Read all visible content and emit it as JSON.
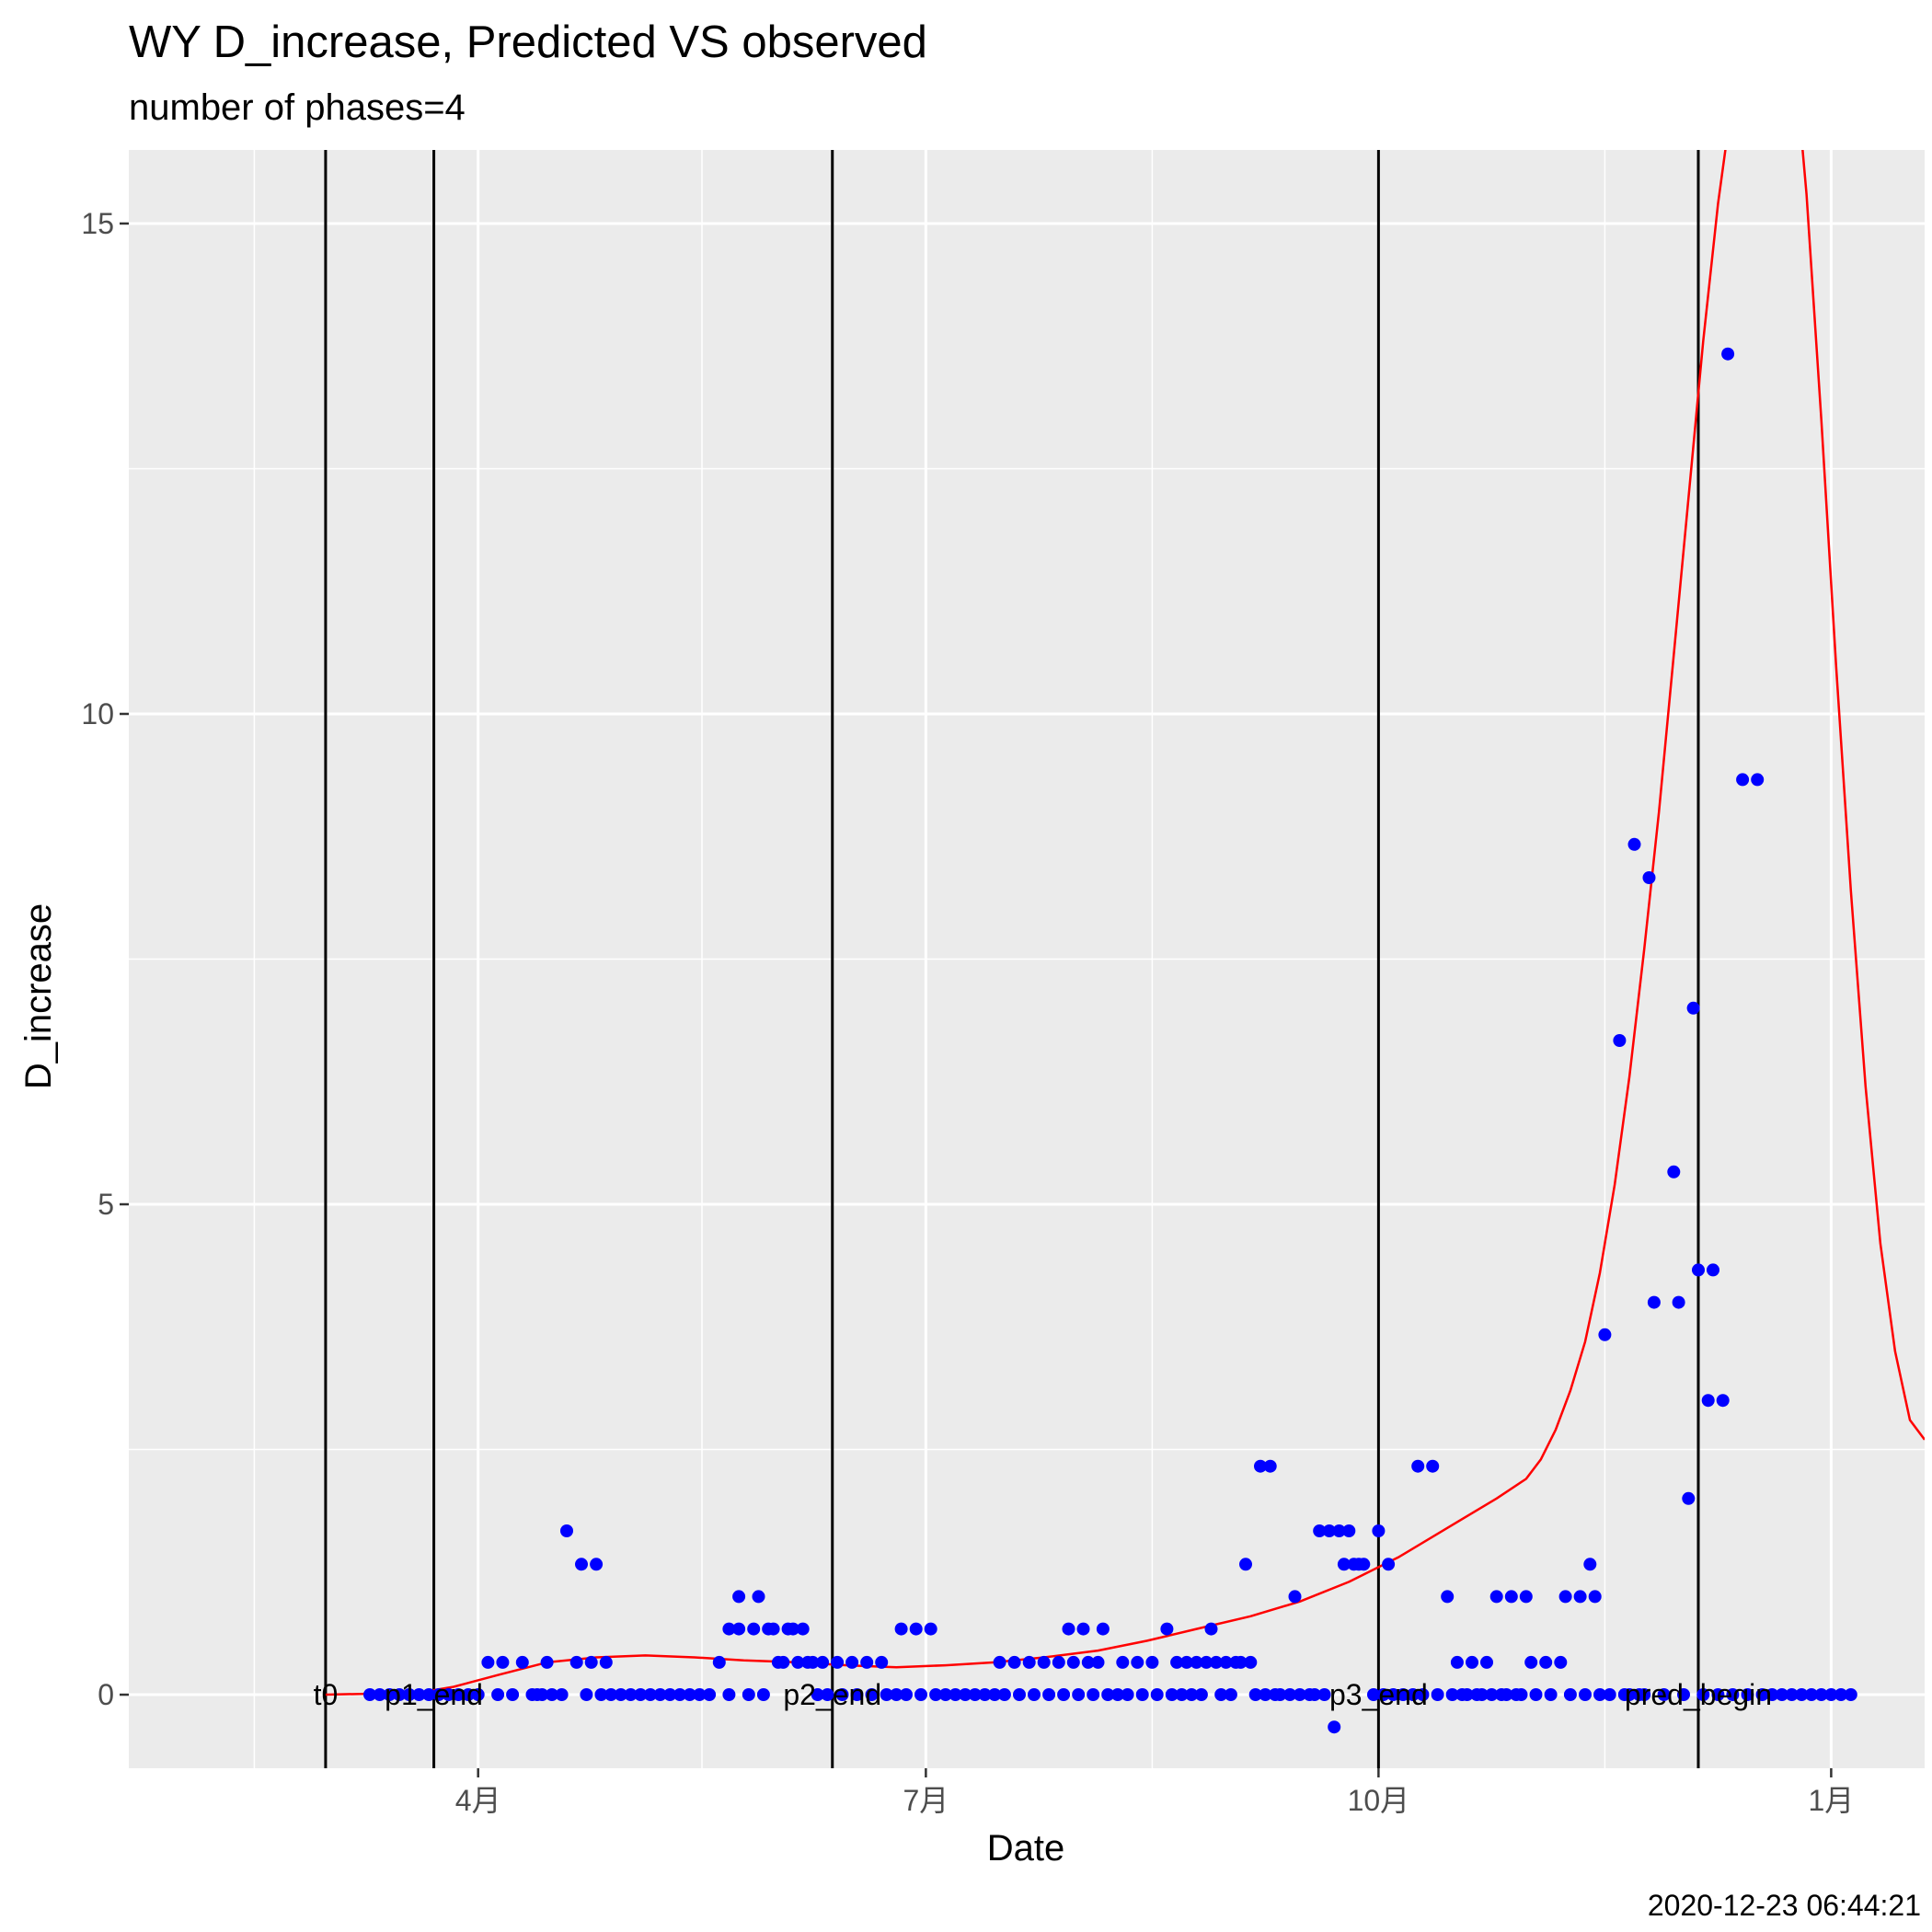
{
  "chart_data": {
    "type": "scatter",
    "title": "WY D_increase, Predicted VS observed",
    "subtitle": "number of phases=4",
    "xlabel": "Date",
    "ylabel": "D_increase",
    "caption": "2020-12-23 06:44:21",
    "xlim": [
      "2020-01-21",
      "2021-01-20"
    ],
    "ylim": [
      -0.75,
      15.75
    ],
    "grid": true,
    "y_ticks": [
      0,
      5,
      10,
      15
    ],
    "x_ticks": [
      {
        "date": "2020-04-01",
        "label": "4月"
      },
      {
        "date": "2020-07-01",
        "label": "7月"
      },
      {
        "date": "2020-10-01",
        "label": "10月"
      },
      {
        "date": "2021-01-01",
        "label": "1月"
      }
    ],
    "vlines": [
      {
        "date": "2020-03-01",
        "label": "t0"
      },
      {
        "date": "2020-03-23",
        "label": "p1_end"
      },
      {
        "date": "2020-06-12",
        "label": "p2_end"
      },
      {
        "date": "2020-10-01",
        "label": "p3_end"
      },
      {
        "date": "2020-12-05",
        "label": "pred_begin"
      }
    ],
    "series": [
      {
        "type": "points",
        "color": "#0000ff",
        "points": [
          [
            "2020-03-10",
            0
          ],
          [
            "2020-03-12",
            0
          ],
          [
            "2020-03-14",
            0
          ],
          [
            "2020-03-16",
            0
          ],
          [
            "2020-03-18",
            0
          ],
          [
            "2020-03-20",
            0
          ],
          [
            "2020-03-22",
            0
          ],
          [
            "2020-03-24",
            0
          ],
          [
            "2020-03-26",
            0
          ],
          [
            "2020-03-28",
            0
          ],
          [
            "2020-03-30",
            0
          ],
          [
            "2020-04-01",
            0
          ],
          [
            "2020-04-03",
            0.33
          ],
          [
            "2020-04-05",
            0
          ],
          [
            "2020-04-06",
            0.33
          ],
          [
            "2020-04-08",
            0
          ],
          [
            "2020-04-10",
            0.33
          ],
          [
            "2020-04-12",
            0
          ],
          [
            "2020-04-13",
            0
          ],
          [
            "2020-04-14",
            0
          ],
          [
            "2020-04-15",
            0.33
          ],
          [
            "2020-04-16",
            0
          ],
          [
            "2020-04-18",
            0
          ],
          [
            "2020-04-19",
            1.67
          ],
          [
            "2020-04-21",
            0.33
          ],
          [
            "2020-04-22",
            1.33
          ],
          [
            "2020-04-23",
            0
          ],
          [
            "2020-04-24",
            0.33
          ],
          [
            "2020-04-25",
            1.33
          ],
          [
            "2020-04-26",
            0
          ],
          [
            "2020-04-27",
            0.33
          ],
          [
            "2020-04-28",
            0
          ],
          [
            "2020-04-30",
            0
          ],
          [
            "2020-05-02",
            0
          ],
          [
            "2020-05-04",
            0
          ],
          [
            "2020-05-06",
            0
          ],
          [
            "2020-05-08",
            0
          ],
          [
            "2020-05-10",
            0
          ],
          [
            "2020-05-12",
            0
          ],
          [
            "2020-05-14",
            0
          ],
          [
            "2020-05-16",
            0
          ],
          [
            "2020-05-18",
            0
          ],
          [
            "2020-05-20",
            0.33
          ],
          [
            "2020-05-22",
            0
          ],
          [
            "2020-05-22",
            0.67
          ],
          [
            "2020-05-24",
            0.67
          ],
          [
            "2020-05-24",
            1.0
          ],
          [
            "2020-05-26",
            0
          ],
          [
            "2020-05-27",
            0.67
          ],
          [
            "2020-05-28",
            1.0
          ],
          [
            "2020-05-29",
            0
          ],
          [
            "2020-05-30",
            0.67
          ],
          [
            "2020-05-31",
            0.67
          ],
          [
            "2020-06-01",
            0.33
          ],
          [
            "2020-06-02",
            0.33
          ],
          [
            "2020-06-03",
            0.67
          ],
          [
            "2020-06-04",
            0.67
          ],
          [
            "2020-06-05",
            0.33
          ],
          [
            "2020-06-06",
            0.67
          ],
          [
            "2020-06-07",
            0.33
          ],
          [
            "2020-06-08",
            0.33
          ],
          [
            "2020-06-09",
            0
          ],
          [
            "2020-06-10",
            0.33
          ],
          [
            "2020-06-11",
            0
          ],
          [
            "2020-06-13",
            0.33
          ],
          [
            "2020-06-14",
            0
          ],
          [
            "2020-06-16",
            0.33
          ],
          [
            "2020-06-17",
            0
          ],
          [
            "2020-06-19",
            0.33
          ],
          [
            "2020-06-20",
            0
          ],
          [
            "2020-06-22",
            0.33
          ],
          [
            "2020-06-23",
            0
          ],
          [
            "2020-06-25",
            0
          ],
          [
            "2020-06-26",
            0.67
          ],
          [
            "2020-06-27",
            0
          ],
          [
            "2020-06-29",
            0.67
          ],
          [
            "2020-06-30",
            0
          ],
          [
            "2020-07-02",
            0.67
          ],
          [
            "2020-07-03",
            0
          ],
          [
            "2020-07-05",
            0
          ],
          [
            "2020-07-07",
            0
          ],
          [
            "2020-07-09",
            0
          ],
          [
            "2020-07-11",
            0
          ],
          [
            "2020-07-13",
            0
          ],
          [
            "2020-07-15",
            0
          ],
          [
            "2020-07-16",
            0.33
          ],
          [
            "2020-07-17",
            0
          ],
          [
            "2020-07-19",
            0.33
          ],
          [
            "2020-07-20",
            0
          ],
          [
            "2020-07-22",
            0.33
          ],
          [
            "2020-07-23",
            0
          ],
          [
            "2020-07-25",
            0.33
          ],
          [
            "2020-07-26",
            0
          ],
          [
            "2020-07-28",
            0.33
          ],
          [
            "2020-07-29",
            0
          ],
          [
            "2020-07-30",
            0.67
          ],
          [
            "2020-07-31",
            0.33
          ],
          [
            "2020-08-01",
            0
          ],
          [
            "2020-08-02",
            0.67
          ],
          [
            "2020-08-03",
            0.33
          ],
          [
            "2020-08-04",
            0
          ],
          [
            "2020-08-05",
            0.33
          ],
          [
            "2020-08-06",
            0.67
          ],
          [
            "2020-08-07",
            0
          ],
          [
            "2020-08-09",
            0
          ],
          [
            "2020-08-10",
            0.33
          ],
          [
            "2020-08-11",
            0
          ],
          [
            "2020-08-13",
            0.33
          ],
          [
            "2020-08-14",
            0
          ],
          [
            "2020-08-16",
            0.33
          ],
          [
            "2020-08-17",
            0
          ],
          [
            "2020-08-19",
            0.67
          ],
          [
            "2020-08-20",
            0
          ],
          [
            "2020-08-21",
            0.33
          ],
          [
            "2020-08-22",
            0
          ],
          [
            "2020-08-23",
            0.33
          ],
          [
            "2020-08-24",
            0
          ],
          [
            "2020-08-25",
            0.33
          ],
          [
            "2020-08-26",
            0
          ],
          [
            "2020-08-27",
            0.33
          ],
          [
            "2020-08-28",
            0.67
          ],
          [
            "2020-08-29",
            0.33
          ],
          [
            "2020-08-30",
            0
          ],
          [
            "2020-08-31",
            0.33
          ],
          [
            "2020-09-01",
            0
          ],
          [
            "2020-09-02",
            0.33
          ],
          [
            "2020-09-03",
            0.33
          ],
          [
            "2020-09-04",
            1.33
          ],
          [
            "2020-09-05",
            0.33
          ],
          [
            "2020-09-06",
            0
          ],
          [
            "2020-09-07",
            2.33
          ],
          [
            "2020-09-08",
            0
          ],
          [
            "2020-09-09",
            2.33
          ],
          [
            "2020-09-10",
            0
          ],
          [
            "2020-09-11",
            0
          ],
          [
            "2020-09-13",
            0
          ],
          [
            "2020-09-14",
            1.0
          ],
          [
            "2020-09-15",
            0
          ],
          [
            "2020-09-17",
            0
          ],
          [
            "2020-09-18",
            0
          ],
          [
            "2020-09-19",
            1.67
          ],
          [
            "2020-09-20",
            0
          ],
          [
            "2020-09-21",
            1.67
          ],
          [
            "2020-09-22",
            -0.33
          ],
          [
            "2020-09-23",
            1.67
          ],
          [
            "2020-09-24",
            1.33
          ],
          [
            "2020-09-25",
            1.67
          ],
          [
            "2020-09-26",
            1.33
          ],
          [
            "2020-09-27",
            1.33
          ],
          [
            "2020-09-28",
            1.33
          ],
          [
            "2020-09-30",
            0
          ],
          [
            "2020-10-01",
            1.67
          ],
          [
            "2020-10-02",
            0
          ],
          [
            "2020-10-03",
            1.33
          ],
          [
            "2020-10-04",
            0
          ],
          [
            "2020-10-06",
            0
          ],
          [
            "2020-10-08",
            0
          ],
          [
            "2020-10-09",
            2.33
          ],
          [
            "2020-10-10",
            0
          ],
          [
            "2020-10-12",
            2.33
          ],
          [
            "2020-10-13",
            0
          ],
          [
            "2020-10-15",
            1.0
          ],
          [
            "2020-10-16",
            0
          ],
          [
            "2020-10-17",
            0.33
          ],
          [
            "2020-10-18",
            0
          ],
          [
            "2020-10-19",
            0
          ],
          [
            "2020-10-20",
            0.33
          ],
          [
            "2020-10-21",
            0
          ],
          [
            "2020-10-22",
            0
          ],
          [
            "2020-10-23",
            0.33
          ],
          [
            "2020-10-24",
            0
          ],
          [
            "2020-10-25",
            1.0
          ],
          [
            "2020-10-26",
            0
          ],
          [
            "2020-10-27",
            0
          ],
          [
            "2020-10-28",
            1.0
          ],
          [
            "2020-10-29",
            0
          ],
          [
            "2020-10-30",
            0
          ],
          [
            "2020-10-31",
            1.0
          ],
          [
            "2020-11-01",
            0.33
          ],
          [
            "2020-11-02",
            0
          ],
          [
            "2020-11-04",
            0.33
          ],
          [
            "2020-11-05",
            0
          ],
          [
            "2020-11-07",
            0.33
          ],
          [
            "2020-11-08",
            1.0
          ],
          [
            "2020-11-09",
            0
          ],
          [
            "2020-11-11",
            1.0
          ],
          [
            "2020-11-12",
            0
          ],
          [
            "2020-11-13",
            1.33
          ],
          [
            "2020-11-14",
            1.0
          ],
          [
            "2020-11-15",
            0
          ],
          [
            "2020-11-16",
            3.67
          ],
          [
            "2020-11-17",
            0
          ],
          [
            "2020-11-19",
            6.67
          ],
          [
            "2020-11-20",
            0
          ],
          [
            "2020-11-21",
            0
          ],
          [
            "2020-11-22",
            8.67
          ],
          [
            "2020-11-23",
            0
          ],
          [
            "2020-11-24",
            0
          ],
          [
            "2020-11-25",
            8.33
          ],
          [
            "2020-11-26",
            4.0
          ],
          [
            "2020-11-28",
            0
          ],
          [
            "2020-11-30",
            5.33
          ],
          [
            "2020-12-01",
            4.0
          ],
          [
            "2020-12-02",
            0
          ],
          [
            "2020-12-03",
            2.0
          ],
          [
            "2020-12-04",
            7.0
          ],
          [
            "2020-12-05",
            4.33
          ],
          [
            "2020-12-06",
            0
          ],
          [
            "2020-12-07",
            3.0
          ],
          [
            "2020-12-08",
            4.33
          ],
          [
            "2020-12-09",
            0
          ],
          [
            "2020-12-10",
            3.0
          ],
          [
            "2020-12-11",
            13.67
          ],
          [
            "2020-12-12",
            0
          ],
          [
            "2020-12-14",
            9.33
          ],
          [
            "2020-12-15",
            0
          ],
          [
            "2020-12-17",
            9.33
          ],
          [
            "2020-12-18",
            0
          ],
          [
            "2020-12-20",
            0
          ],
          [
            "2020-12-22",
            0
          ],
          [
            "2020-12-24",
            0
          ],
          [
            "2020-12-26",
            0
          ],
          [
            "2020-12-28",
            0
          ],
          [
            "2020-12-30",
            0
          ],
          [
            "2021-01-01",
            0
          ],
          [
            "2021-01-03",
            0
          ],
          [
            "2021-01-05",
            0
          ]
        ]
      },
      {
        "type": "line",
        "color": "#ff0000",
        "points": [
          [
            "2020-03-01",
            0
          ],
          [
            "2020-03-20",
            0.02
          ],
          [
            "2020-03-27",
            0.08
          ],
          [
            "2020-04-05",
            0.2
          ],
          [
            "2020-04-15",
            0.33
          ],
          [
            "2020-04-25",
            0.38
          ],
          [
            "2020-05-05",
            0.4
          ],
          [
            "2020-05-15",
            0.38
          ],
          [
            "2020-05-25",
            0.35
          ],
          [
            "2020-06-05",
            0.33
          ],
          [
            "2020-06-15",
            0.3
          ],
          [
            "2020-06-25",
            0.28
          ],
          [
            "2020-07-05",
            0.3
          ],
          [
            "2020-07-15",
            0.33
          ],
          [
            "2020-07-25",
            0.38
          ],
          [
            "2020-08-05",
            0.45
          ],
          [
            "2020-08-15",
            0.55
          ],
          [
            "2020-08-25",
            0.67
          ],
          [
            "2020-09-05",
            0.8
          ],
          [
            "2020-09-15",
            0.95
          ],
          [
            "2020-09-25",
            1.15
          ],
          [
            "2020-10-05",
            1.4
          ],
          [
            "2020-10-15",
            1.7
          ],
          [
            "2020-10-25",
            2.0
          ],
          [
            "2020-10-31",
            2.2
          ],
          [
            "2020-11-03",
            2.4
          ],
          [
            "2020-11-06",
            2.7
          ],
          [
            "2020-11-09",
            3.1
          ],
          [
            "2020-11-12",
            3.6
          ],
          [
            "2020-11-15",
            4.3
          ],
          [
            "2020-11-18",
            5.2
          ],
          [
            "2020-11-21",
            6.3
          ],
          [
            "2020-11-24",
            7.6
          ],
          [
            "2020-11-27",
            9.0
          ],
          [
            "2020-11-30",
            10.6
          ],
          [
            "2020-12-03",
            12.2
          ],
          [
            "2020-12-06",
            13.8
          ],
          [
            "2020-12-09",
            15.2
          ],
          [
            "2020-12-12",
            16.3
          ],
          [
            "2020-12-15",
            17.5
          ],
          [
            "2020-12-18",
            18.8
          ],
          [
            "2020-12-21",
            18.6
          ],
          [
            "2020-12-24",
            17.0
          ],
          [
            "2020-12-27",
            15.3
          ],
          [
            "2020-12-30",
            13.0
          ],
          [
            "2021-01-02",
            10.5
          ],
          [
            "2021-01-05",
            8.2
          ],
          [
            "2021-01-08",
            6.2
          ],
          [
            "2021-01-11",
            4.6
          ],
          [
            "2021-01-14",
            3.5
          ],
          [
            "2021-01-17",
            2.8
          ],
          [
            "2021-01-20",
            2.6
          ]
        ]
      }
    ]
  }
}
